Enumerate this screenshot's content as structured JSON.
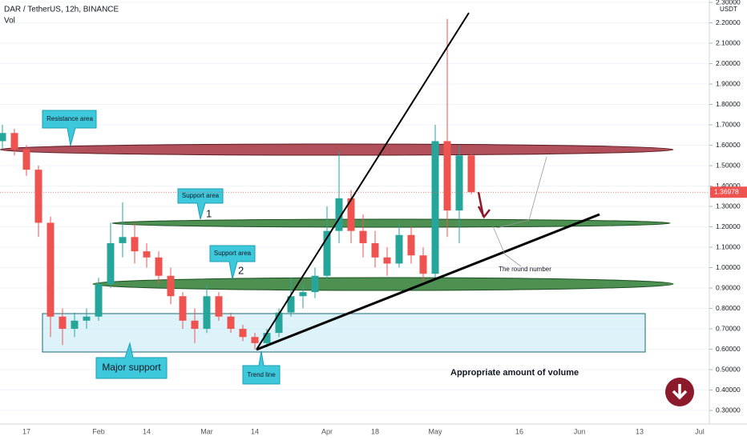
{
  "chart_data": {
    "type": "candlestick",
    "title": "DAR / TetherUS, 12h, BINANCE",
    "subtitle": "Vol",
    "y_axis_label": "USDT",
    "categories": [
      null,
      null,
      "17",
      null,
      null,
      null,
      null,
      null,
      "Feb",
      null,
      null,
      null,
      "14",
      null,
      null,
      null,
      null,
      "Mar",
      null,
      null,
      null,
      "14",
      null,
      null,
      null,
      null,
      null,
      "Apr",
      null,
      null,
      null,
      "18",
      null,
      null,
      null,
      null,
      "May",
      null,
      null,
      null,
      null,
      null,
      null,
      "16",
      null,
      null,
      null,
      null,
      "Jun",
      null,
      null,
      null,
      null,
      "13",
      null,
      null,
      null,
      null,
      "Jul"
    ],
    "open": [
      1.62,
      1.66,
      1.58,
      1.48,
      1.22,
      0.76,
      0.7,
      0.74,
      0.76,
      0.92,
      1.12,
      1.15,
      1.08,
      1.05,
      0.96,
      0.86,
      0.74,
      0.7,
      0.86,
      0.76,
      0.7,
      0.66,
      0.63,
      0.68,
      0.78,
      0.86,
      0.88,
      0.96,
      1.18,
      1.34,
      1.18,
      1.12,
      1.05,
      1.02,
      1.16,
      1.06,
      0.97,
      1.62,
      1.28,
      1.55,
      null,
      null,
      null,
      null,
      null,
      null,
      null,
      null,
      null,
      null,
      null,
      null,
      null,
      null,
      null,
      null,
      null,
      null,
      null
    ],
    "high": [
      1.7,
      1.68,
      1.6,
      1.5,
      1.25,
      0.8,
      0.78,
      0.8,
      0.95,
      1.22,
      1.32,
      1.22,
      1.12,
      1.08,
      1.0,
      0.88,
      0.8,
      0.92,
      0.88,
      0.78,
      0.72,
      0.68,
      0.7,
      0.8,
      0.95,
      0.92,
      1.0,
      1.3,
      1.57,
      1.38,
      1.26,
      1.18,
      1.1,
      1.22,
      1.2,
      1.1,
      1.7,
      2.22,
      1.6,
      1.56,
      null,
      null,
      null,
      null,
      null,
      null,
      null,
      null,
      null,
      null,
      null,
      null,
      null,
      null,
      null,
      null,
      null,
      null,
      null
    ],
    "low": [
      1.58,
      1.55,
      1.45,
      1.15,
      0.66,
      0.62,
      0.66,
      0.7,
      0.74,
      0.9,
      1.05,
      1.02,
      1.0,
      0.92,
      0.82,
      0.7,
      0.63,
      0.68,
      0.74,
      0.68,
      0.64,
      0.6,
      0.61,
      0.66,
      0.76,
      0.8,
      0.85,
      0.94,
      1.12,
      1.12,
      1.05,
      1.0,
      0.96,
      1.0,
      1.02,
      0.93,
      0.95,
      1.15,
      1.12,
      1.36,
      null,
      null,
      null,
      null,
      null,
      null,
      null,
      null,
      null,
      null,
      null,
      null,
      null,
      null,
      null,
      null,
      null,
      null,
      null
    ],
    "close": [
      1.66,
      1.58,
      1.48,
      1.22,
      0.76,
      0.7,
      0.74,
      0.76,
      0.92,
      1.12,
      1.15,
      1.08,
      1.05,
      0.96,
      0.86,
      0.74,
      0.7,
      0.86,
      0.76,
      0.7,
      0.66,
      0.63,
      0.68,
      0.78,
      0.86,
      0.88,
      0.96,
      1.18,
      1.34,
      1.18,
      1.12,
      1.05,
      1.02,
      1.16,
      1.06,
      0.97,
      1.62,
      1.28,
      1.55,
      1.37,
      null,
      null,
      null,
      null,
      null,
      null,
      null,
      null,
      null,
      null,
      null,
      null,
      null,
      null,
      null,
      null,
      null,
      null,
      null
    ],
    "up_color": "#26a69a",
    "down_color": "#ef5350",
    "ylim": [
      0.155,
      2.312
    ],
    "yticks": [
      {
        "value": 0.3,
        "label": "0.30000"
      },
      {
        "value": 0.4,
        "label": "0.40000"
      },
      {
        "value": 0.5,
        "label": "0.50000"
      },
      {
        "value": 0.6,
        "label": "0.60000"
      },
      {
        "value": 0.7,
        "label": "0.70000"
      },
      {
        "value": 0.8,
        "label": "0.80000"
      },
      {
        "value": 0.9,
        "label": "0.90000"
      },
      {
        "value": 1.0,
        "label": "1.00000"
      },
      {
        "value": 1.1,
        "label": "1.10000"
      },
      {
        "value": 1.2,
        "label": "1.20000"
      },
      {
        "value": 1.3,
        "label": "1.30000"
      },
      {
        "value": 1.4,
        "label": "1.40000"
      },
      {
        "value": 1.5,
        "label": "1.50000"
      },
      {
        "value": 1.6,
        "label": "1.60000"
      },
      {
        "value": 1.7,
        "label": "1.70000"
      },
      {
        "value": 1.8,
        "label": "1.80000"
      },
      {
        "value": 1.9,
        "label": "1.90000"
      },
      {
        "value": 2.0,
        "label": "2.00000"
      },
      {
        "value": 2.1,
        "label": "2.10000"
      },
      {
        "value": 2.2,
        "label": "2.20000"
      },
      {
        "value": 2.3,
        "label": "2.30000"
      }
    ],
    "grid": true,
    "last_price": 1.36978,
    "annotations": [
      "Resistance area",
      "Support area",
      "1",
      "Support area",
      "2",
      "Major support",
      "Trend line",
      "The round number",
      "Appropriate amount of volume"
    ]
  }
}
